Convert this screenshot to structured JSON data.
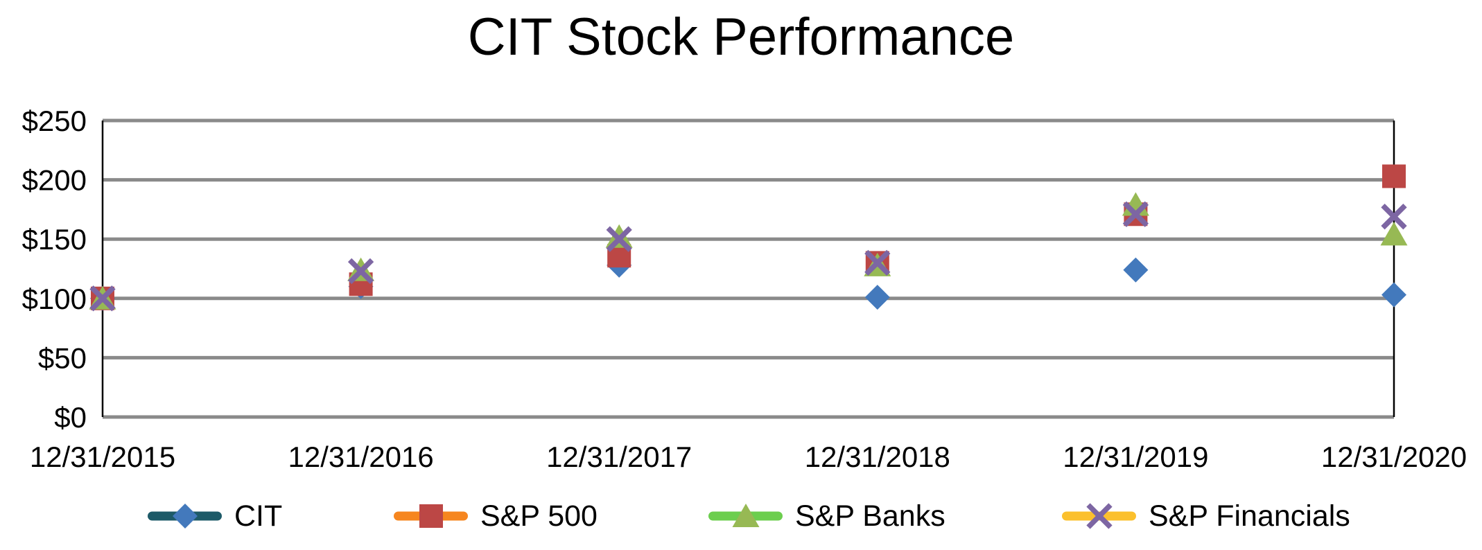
{
  "title": "CIT Stock Performance",
  "background": "#FFFFFF",
  "chart_data": {
    "type": "scatter",
    "title": "CIT Stock Performance",
    "categories": [
      "12/31/2015",
      "12/31/2016",
      "12/31/2017",
      "12/31/2018",
      "12/31/2019",
      "12/31/2020"
    ],
    "series": [
      {
        "name": "CIT",
        "marker": "diamond",
        "marker_color": "#4379BC",
        "line_color": "#1D5A68",
        "values": [
          100,
          110,
          128,
          101,
          124,
          103
        ]
      },
      {
        "name": "S&P 500",
        "marker": "square",
        "marker_color": "#BC4745",
        "line_color": "#F6861F",
        "values": [
          100,
          112,
          136,
          130,
          171,
          203
        ]
      },
      {
        "name": "S&P Banks",
        "marker": "triangle",
        "marker_color": "#97B954",
        "line_color": "#6CCE4E",
        "values": [
          100,
          124,
          152,
          128,
          179,
          154
        ]
      },
      {
        "name": "S&P Financials",
        "marker": "x",
        "marker_color": "#7D66A3",
        "line_color": "#FBC02D",
        "values": [
          100,
          123,
          150,
          130,
          171,
          169
        ]
      }
    ],
    "xlabel": "",
    "ylabel": "",
    "ylim": [
      0,
      250
    ],
    "ytick_values": [
      0,
      50,
      100,
      150,
      200,
      250
    ],
    "ytick_labels": [
      "$0",
      "$50",
      "$100",
      "$150",
      "$200",
      "$250"
    ],
    "grid": "horizontal",
    "gridline_color": "#8A8A8A",
    "axis_border_color": "#000000",
    "text_color": "#000000",
    "legend_position": "bottom"
  }
}
